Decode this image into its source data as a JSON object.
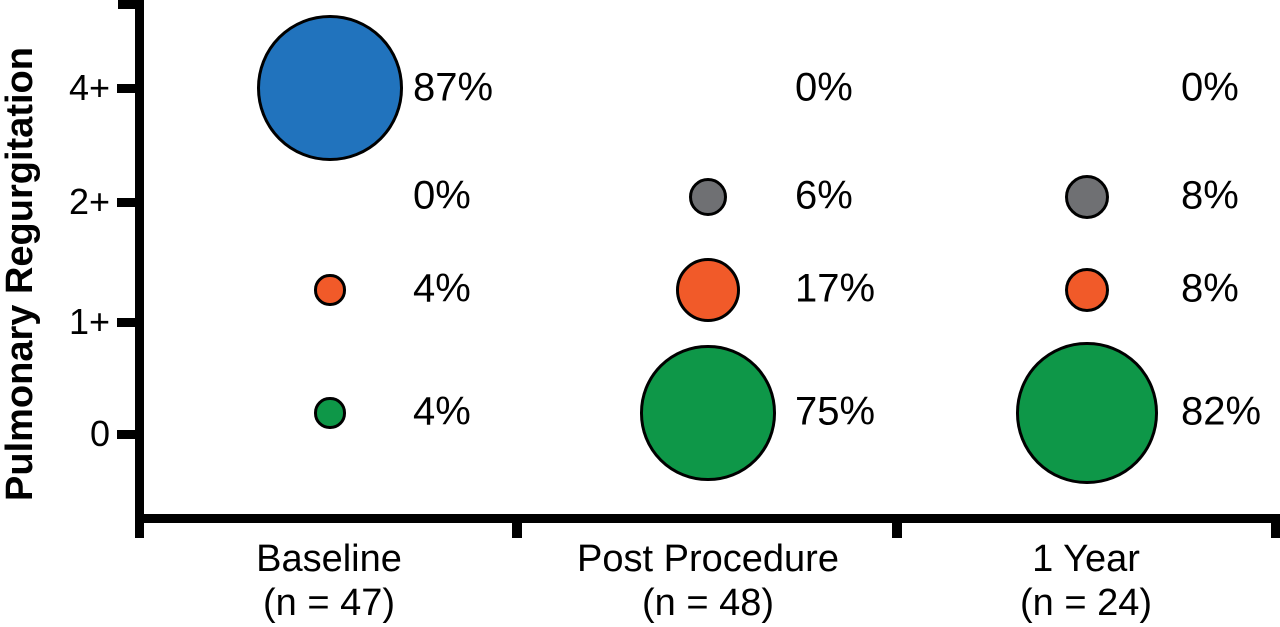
{
  "chart_data": {
    "type": "scatter",
    "subtype": "bubble",
    "title": "",
    "ylabel": "Pulmonary Regurgitation",
    "y_tick_labels": [
      "4+",
      "2+",
      "1+",
      "0"
    ],
    "legend": "none",
    "grid": false,
    "bubble_sizing": "area proportional to percent",
    "row_colors": {
      "4+": "#2173bd",
      "2+": "#6f7073",
      "1+": "#f15a29",
      "0": "#0e9748"
    },
    "bubble_outline_color": "#000000",
    "axis_color": "#000000",
    "groups": [
      {
        "label": "Baseline",
        "n": "(n = 47)",
        "points": [
          {
            "row": "4+",
            "value": 87,
            "label": "87%"
          },
          {
            "row": "2+",
            "value": 0,
            "label": "0%"
          },
          {
            "row": "1+",
            "value": 4,
            "label": "4%"
          },
          {
            "row": "0",
            "value": 4,
            "label": "4%"
          }
        ]
      },
      {
        "label": "Post Procedure",
        "n": "(n = 48)",
        "points": [
          {
            "row": "4+",
            "value": 0,
            "label": "0%"
          },
          {
            "row": "2+",
            "value": 6,
            "label": "6%"
          },
          {
            "row": "1+",
            "value": 17,
            "label": "17%"
          },
          {
            "row": "0",
            "value": 75,
            "label": "75%"
          }
        ]
      },
      {
        "label": "1 Year",
        "n": "(n = 24)",
        "points": [
          {
            "row": "4+",
            "value": 0,
            "label": "0%"
          },
          {
            "row": "2+",
            "value": 8,
            "label": "8%"
          },
          {
            "row": "1+",
            "value": 8,
            "label": "8%"
          },
          {
            "row": "0",
            "value": 82,
            "label": "82%"
          }
        ]
      }
    ]
  }
}
